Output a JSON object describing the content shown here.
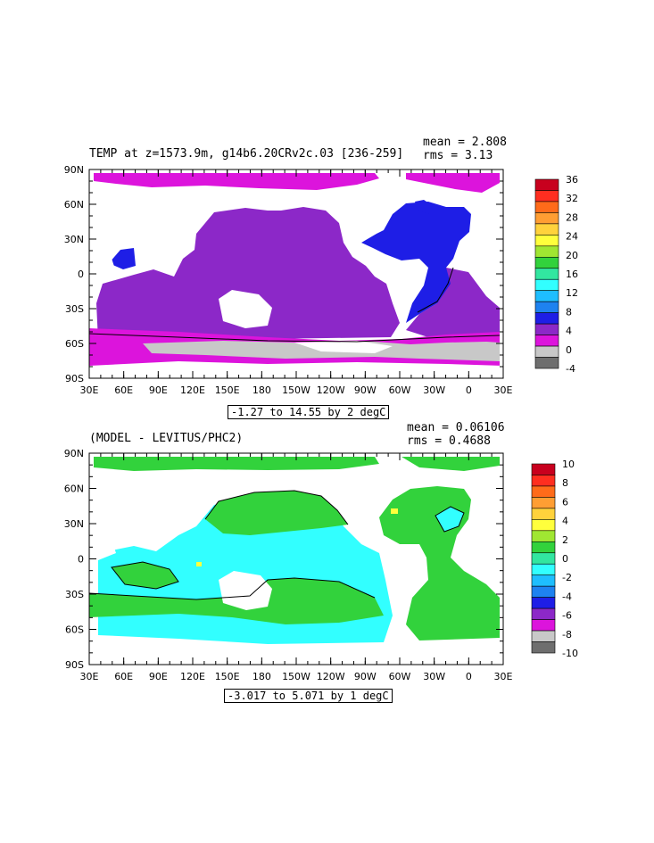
{
  "panels": [
    {
      "title": "TEMP at z=1573.9m, g14b6.20CRv2c.03 [236-259]",
      "mean": "mean = 2.808",
      "rms": "rms = 3.13",
      "range_label": "-1.27 to 14.55 by 2 degC",
      "colorbar": {
        "labels": [
          "36",
          "32",
          "28",
          "24",
          "20",
          "16",
          "12",
          "8",
          "4",
          "0",
          "-4"
        ],
        "colors": [
          "#c8001e",
          "#ff2e20",
          "#ff6b1a",
          "#ff9e33",
          "#ffd23c",
          "#ffff3c",
          "#a0e632",
          "#32d23c",
          "#32e6a0",
          "#32ffff",
          "#1ebeff",
          "#1e82f0",
          "#1e1ee6",
          "#8c28c8",
          "#dc14dc",
          "#c8c8c8",
          "#6e6e6e"
        ]
      }
    },
    {
      "title": "(MODEL - LEVITUS/PHC2)",
      "mean": "mean = 0.06106",
      "rms": "rms = 0.4688",
      "range_label": "-3.017 to 5.071 by 1 degC",
      "colorbar": {
        "labels": [
          "10",
          "8",
          "6",
          "4",
          "2",
          "0",
          "-2",
          "-4",
          "-6",
          "-8",
          "-10"
        ],
        "colors": [
          "#c8001e",
          "#ff2e20",
          "#ff6b1a",
          "#ff9e33",
          "#ffd23c",
          "#ffff3c",
          "#a0e632",
          "#32d23c",
          "#32e6a0",
          "#32ffff",
          "#1ebeff",
          "#1e82f0",
          "#1e1ee6",
          "#8c28c8",
          "#dc14dc",
          "#c8c8c8",
          "#6e6e6e"
        ]
      }
    }
  ],
  "axes": {
    "lat_labels": [
      "90N",
      "60N",
      "30N",
      "0",
      "30S",
      "60S",
      "90S"
    ],
    "lon_labels": [
      "30E",
      "60E",
      "90E",
      "120E",
      "150E",
      "180",
      "150W",
      "120W",
      "90W",
      "60W",
      "30W",
      "0",
      "30E"
    ]
  },
  "map_colors": {
    "land": "#ffffff",
    "top_pacific": "#8c28c8",
    "top_arctic": "#dc14dc",
    "top_atlantic": "#1e1ee6",
    "top_south": "#dc14dc",
    "top_antarctic": "#c8c8c8",
    "bottom_cyan": "#32ffff",
    "bottom_green": "#32e6a0",
    "bottom_lime": "#32d23c"
  }
}
